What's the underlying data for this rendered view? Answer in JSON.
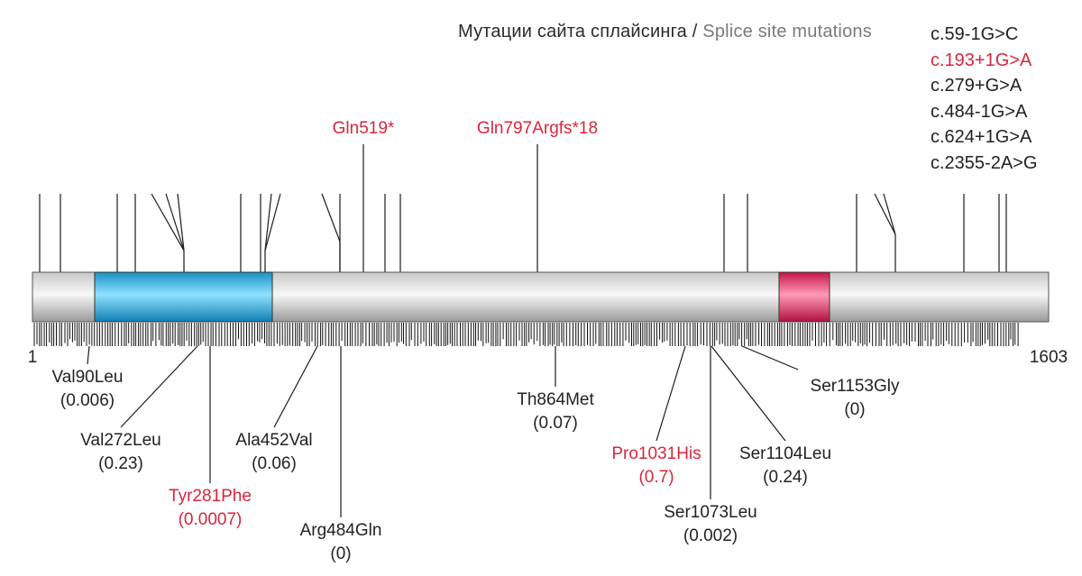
{
  "splice_header": {
    "label_ru": "Мутации сайта сплайсинга",
    "separator": "/",
    "label_en": "Splice site mutations"
  },
  "splice_mutations": [
    {
      "text": "c.59-1G>C",
      "highlight": false
    },
    {
      "text": "c.193+1G>A",
      "highlight": true
    },
    {
      "text": "c.279+G>A",
      "highlight": false
    },
    {
      "text": "c.484-1G>A",
      "highlight": false
    },
    {
      "text": "c.624+1G>A",
      "highlight": false
    },
    {
      "text": "c.2355-2A>G",
      "highlight": false
    }
  ],
  "protein": {
    "start_label": "1",
    "end_label": "1603",
    "length": 1603,
    "domains": [
      {
        "start": 62,
        "end": 382,
        "color": "#1aa8d6"
      },
      {
        "start": 1215,
        "end": 1309,
        "color": "#e0245a"
      }
    ]
  },
  "top_mutations": [
    {
      "label": "Gln519*",
      "position": 519,
      "highlight": true
    },
    {
      "label": "Gln797Argfs*18",
      "position": 797,
      "highlight": true
    }
  ],
  "bottom_mutations": [
    {
      "name": "Val90Leu",
      "score": "(0.006)",
      "position": 90,
      "highlight": false
    },
    {
      "name": "Val272Leu",
      "score": "(0.23)",
      "position": 272,
      "highlight": false
    },
    {
      "name": "Tyr281Phe",
      "score": "(0.0007)",
      "position": 281,
      "highlight": true
    },
    {
      "name": "Ala452Val",
      "score": "(0.06)",
      "position": 452,
      "highlight": false
    },
    {
      "name": "Arg484Gln",
      "score": "(0)",
      "position": 484,
      "highlight": false
    },
    {
      "name": "Th864Met",
      "score": "(0.07)",
      "position": 864,
      "highlight": false
    },
    {
      "name": "Pro1031His",
      "score": "(0.7)",
      "position": 1031,
      "highlight": true
    },
    {
      "name": "Ser1073Leu",
      "score": "(0.002)",
      "position": 1073,
      "highlight": false
    },
    {
      "name": "Ser1104Leu",
      "score": "(0.24)",
      "position": 1104,
      "highlight": false
    },
    {
      "name": "Ser1153Gly",
      "score": "(0)",
      "position": 1153,
      "highlight": false
    }
  ],
  "colors": {
    "highlight": "#d9263c",
    "text": "#222222",
    "header_en": "#7a7a7a",
    "line": "#1a1a1a"
  }
}
